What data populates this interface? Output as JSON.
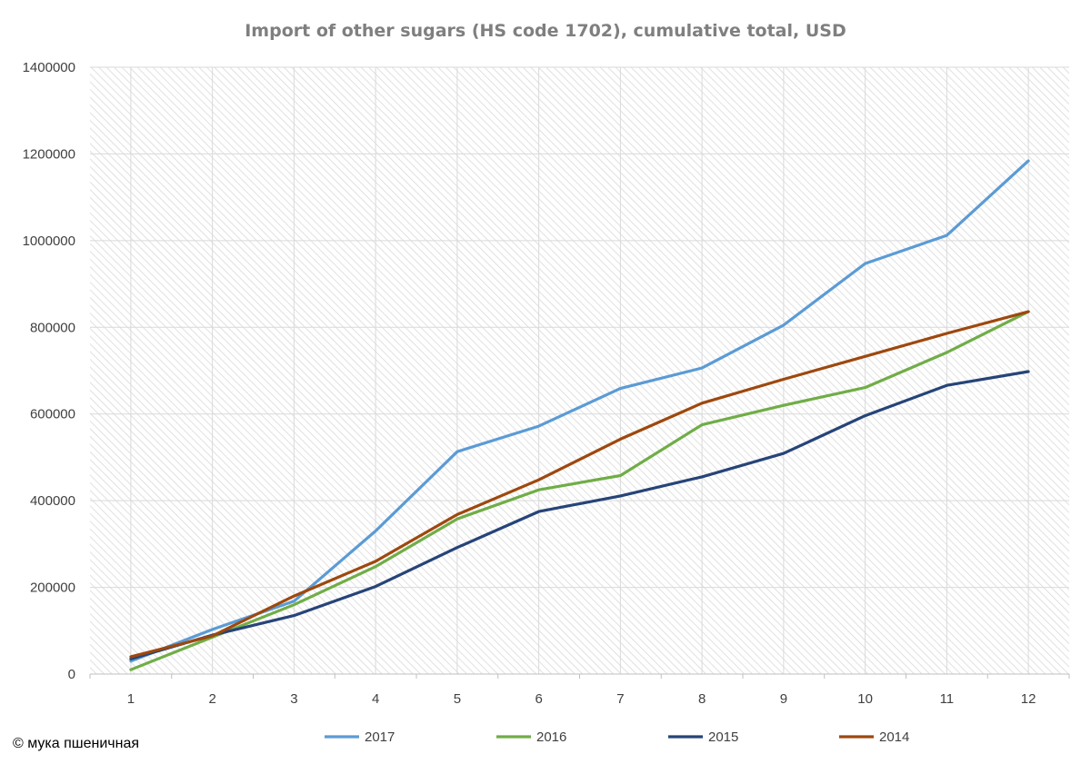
{
  "chart_data": {
    "type": "line",
    "title": "Import of other sugars (HS code 1702), cumulative total, USD",
    "xlabel": "",
    "ylabel": "",
    "categories": [
      "1",
      "2",
      "3",
      "4",
      "5",
      "6",
      "7",
      "8",
      "9",
      "10",
      "11",
      "12"
    ],
    "ylim": [
      0,
      1400000
    ],
    "yticks": [
      0,
      200000,
      400000,
      600000,
      800000,
      1000000,
      1200000,
      1400000
    ],
    "ytick_labels": [
      "0",
      "200000",
      "400000",
      "600000",
      "800000",
      "1000000",
      "1200000",
      "1400000"
    ],
    "grid": true,
    "legend_position": "bottom",
    "series": [
      {
        "name": "2017",
        "color": "#5b9bd5",
        "values": [
          30000,
          103000,
          168000,
          330000,
          513000,
          572000,
          659000,
          706000,
          805000,
          947000,
          1012000,
          1184000
        ]
      },
      {
        "name": "2016",
        "color": "#70ad47",
        "values": [
          10000,
          85000,
          160000,
          248000,
          358000,
          425000,
          458000,
          575000,
          620000,
          661000,
          742000,
          836000
        ]
      },
      {
        "name": "2015",
        "color": "#264478",
        "values": [
          35000,
          90000,
          135000,
          202000,
          292000,
          375000,
          411000,
          455000,
          509000,
          596000,
          666000,
          698000
        ]
      },
      {
        "name": "2014",
        "color": "#9e480e",
        "values": [
          40000,
          88000,
          180000,
          260000,
          368000,
          448000,
          542000,
          625000,
          680000,
          733000,
          786000,
          836000
        ]
      }
    ]
  },
  "footer": {
    "copyright": "© мука пшеничная"
  }
}
